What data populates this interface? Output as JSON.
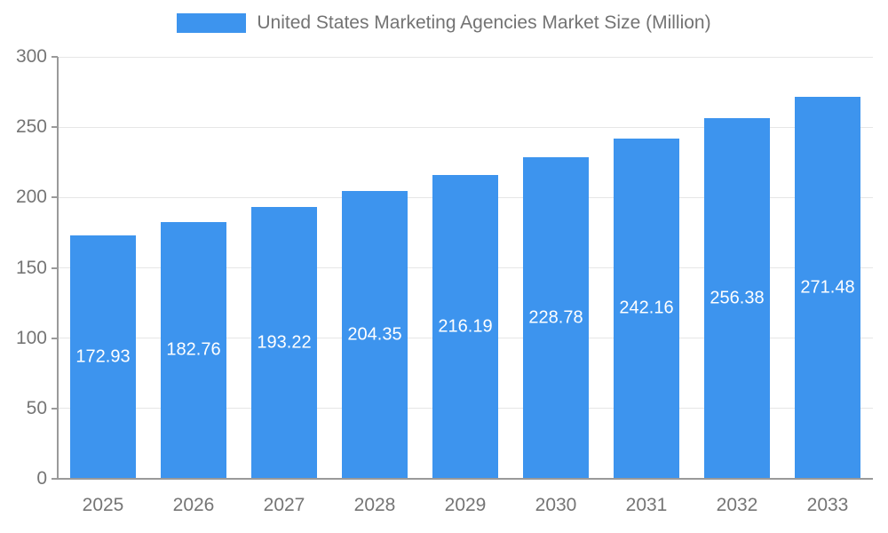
{
  "legend": {
    "series_label": "United States Marketing Agencies Market Size (Million)"
  },
  "colors": {
    "bar": "#3D94EE",
    "bar_label_text": "#ffffff",
    "axis_text": "#757575",
    "axis_line": "#9a9a9a",
    "gridline": "#e6e6e6",
    "background": "#ffffff"
  },
  "chart_data": {
    "type": "bar",
    "title": "United States Marketing Agencies Market Size (Million)",
    "categories": [
      "2025",
      "2026",
      "2027",
      "2028",
      "2029",
      "2030",
      "2031",
      "2032",
      "2033"
    ],
    "values": [
      172.93,
      182.76,
      193.22,
      204.35,
      216.19,
      228.78,
      242.16,
      256.38,
      271.48
    ],
    "value_labels": [
      "172.93",
      "182.76",
      "193.22",
      "204.35",
      "216.19",
      "228.78",
      "242.16",
      "256.38",
      "271.48"
    ],
    "xlabel": "",
    "ylabel": "",
    "ylim": [
      0,
      300
    ],
    "yticks": [
      0,
      50,
      100,
      150,
      200,
      250,
      300
    ],
    "grid": true,
    "legend_position": "top",
    "data_label_position": "inside-center"
  }
}
